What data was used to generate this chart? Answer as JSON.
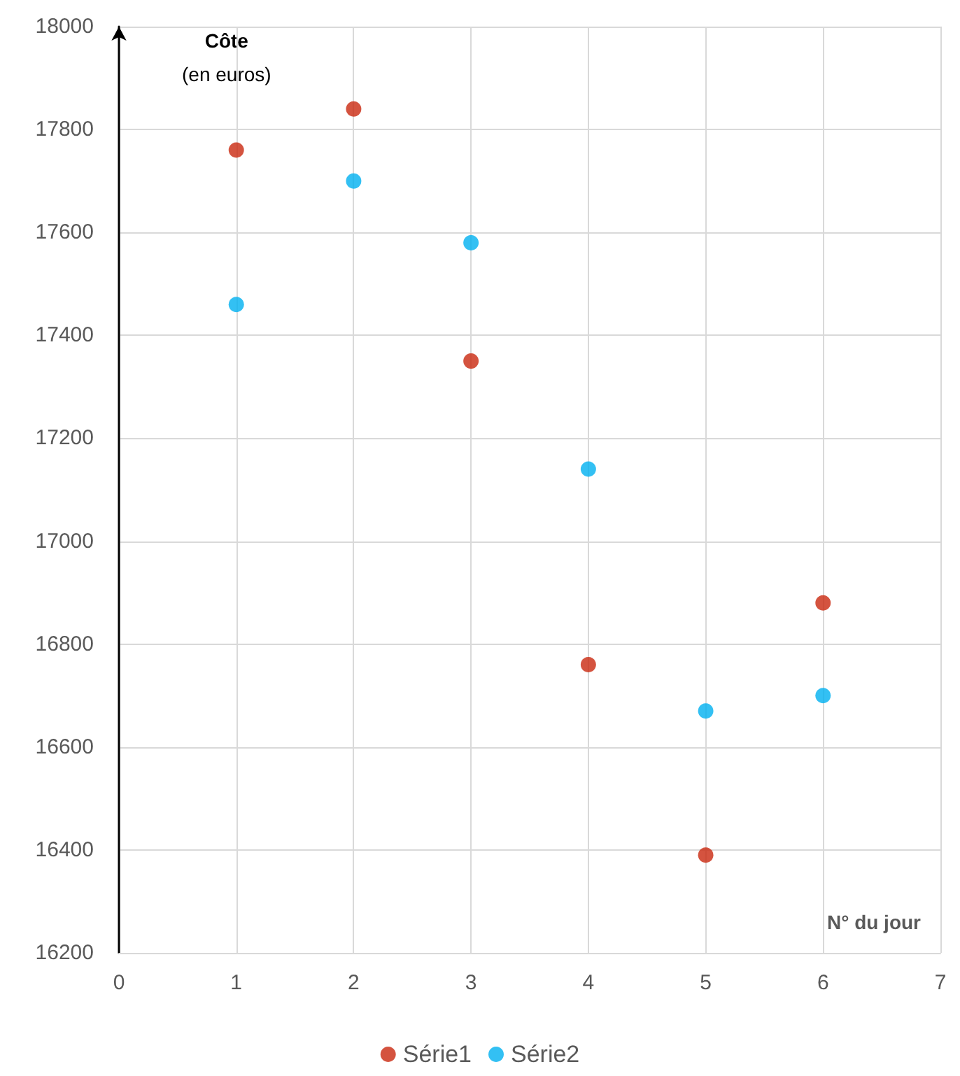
{
  "chart_data": {
    "type": "scatter",
    "xlabel": "N° du jour",
    "ylabel": "Côte\n(en euros)",
    "x": [
      1,
      2,
      3,
      4,
      5,
      6
    ],
    "series": [
      {
        "name": "Série1",
        "color": "#c9280f",
        "values": [
          17760,
          17840,
          17350,
          16760,
          16390,
          16880
        ]
      },
      {
        "name": "Série2",
        "color": "#00b0f0",
        "values": [
          17460,
          17700,
          17580,
          17140,
          16670,
          16700
        ]
      }
    ],
    "xlim": [
      0,
      7
    ],
    "xticks": [
      0,
      1,
      2,
      3,
      4,
      5,
      6,
      7
    ],
    "ylim": [
      16200,
      18000
    ],
    "yticks": [
      16200,
      16400,
      16600,
      16800,
      17000,
      17200,
      17400,
      17600,
      17800,
      18000
    ],
    "grid": true,
    "legend": "bottom",
    "marker": "circle"
  }
}
